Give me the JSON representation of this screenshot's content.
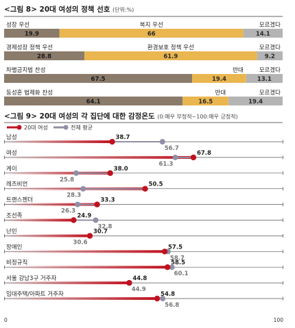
{
  "chart_data": [
    {
      "type": "bar",
      "title": "<그림 8> 20대 여성의 정책 선호",
      "unit": "(단위:%)",
      "colors": {
        "left": "#8b7b6b",
        "middle": "#e9b650",
        "right": "#b4b4b4"
      },
      "rows": [
        {
          "segments": [
            {
              "label": "성장 우선",
              "value": 19.9,
              "value_label": "19.9"
            },
            {
              "label": "복지 우선",
              "value": 66,
              "value_label": "66"
            },
            {
              "label": "모르겠다",
              "value": 14.1,
              "value_label": "14.1"
            }
          ]
        },
        {
          "segments": [
            {
              "label": "경제성장 정책 우선",
              "value": 28.8,
              "value_label": "28.8"
            },
            {
              "label": "환경보호 정책 우선",
              "value": 61.9,
              "value_label": "61.9"
            },
            {
              "label": "모르겠다",
              "value": 9.2,
              "value_label": "9.2"
            }
          ]
        },
        {
          "segments": [
            {
              "label": "차별금지법 찬성",
              "value": 67.5,
              "value_label": "67.5"
            },
            {
              "label": "반대",
              "value": 19.4,
              "value_label": "19.4"
            },
            {
              "label": "모르겠다",
              "value": 13.1,
              "value_label": "13.1"
            }
          ]
        },
        {
          "segments": [
            {
              "label": "동성혼 법제화 찬성",
              "value": 64.1,
              "value_label": "64.1"
            },
            {
              "label": "반대",
              "value": 16.5,
              "value_label": "16.5"
            },
            {
              "label": "모르겠다",
              "value": 19.4,
              "value_label": "19.4"
            }
          ]
        }
      ]
    },
    {
      "type": "dot-plot",
      "title": "<그림 9> 20대 여성의 각 집단에 대한 감정온도",
      "unit": "(0:매우 부정적~100:매우 긍정적)",
      "legend": [
        "20대 여성",
        "전체 평균"
      ],
      "colors": {
        "women20s": "#c0121f",
        "average": "#8f8fa6"
      },
      "xlim": [
        0,
        100
      ],
      "xticks": [
        "0",
        "100"
      ],
      "categories": [
        "남성",
        "여성",
        "게이",
        "레즈비언",
        "트랜스젠더",
        "조선족",
        "난민",
        "장애인",
        "비정규직",
        "서울 강남3구 거주자",
        "임대주택/아파트 거주자"
      ],
      "series": [
        {
          "name": "20대 여성",
          "values": [
            38.7,
            67.8,
            38.0,
            50.5,
            33.3,
            24.9,
            30.7,
            57.5,
            58.5,
            44.8,
            54.8
          ],
          "labels": [
            "38.7",
            "67.8",
            "38.0",
            "50.5",
            "33.3",
            "24.9",
            "30.7",
            "57.5",
            "58.5",
            "44.8",
            "54.8"
          ]
        },
        {
          "name": "전체 평균",
          "values": [
            56.7,
            61.3,
            25.8,
            28.3,
            26.3,
            32.8,
            30.6,
            58.7,
            60.1,
            44.9,
            56.8
          ],
          "labels": [
            "56.7",
            "61.3",
            "25.8",
            "28.3",
            "26.3",
            "32.8",
            "30.6",
            "58.7",
            "60.1",
            "44.9",
            "56.8"
          ]
        }
      ]
    }
  ]
}
